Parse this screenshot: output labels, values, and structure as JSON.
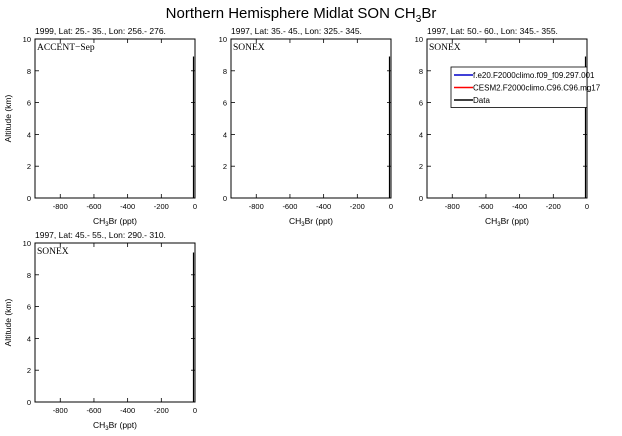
{
  "figure": {
    "title_main": "Northern Hemisphere Midlat SON CH",
    "title_sub": "3",
    "title_end": "Br"
  },
  "chart_data": [
    {
      "type": "line",
      "subtitle": "1999, Lat: 25.- 35., Lon: 256.- 276.",
      "annotation": "ACCENT−Sep",
      "xlabel": "CH3Br (ppt)",
      "ylabel": "Altitude (km)",
      "xlim": [
        -950,
        0
      ],
      "ylim": [
        0,
        10
      ],
      "xticks": [
        -800,
        -600,
        -400,
        -200,
        0
      ],
      "yticks": [
        0,
        2,
        4,
        6,
        8,
        10
      ],
      "legend": null,
      "series": []
    },
    {
      "type": "line",
      "subtitle": "1997, Lat: 35.- 45., Lon: 325.- 345.",
      "annotation": "SONEX",
      "xlabel": "CH3Br (ppt)",
      "ylabel": "",
      "xlim": [
        -950,
        0
      ],
      "ylim": [
        0,
        10
      ],
      "xticks": [
        -800,
        -600,
        -400,
        -200,
        0
      ],
      "yticks": [
        0,
        2,
        4,
        6,
        8,
        10
      ],
      "legend": null,
      "series": []
    },
    {
      "type": "line",
      "subtitle": "1997, Lat: 50.- 60., Lon: 345.- 355.",
      "annotation": "SONEX",
      "xlabel": "CH3Br (ppt)",
      "ylabel": "",
      "xlim": [
        -950,
        0
      ],
      "ylim": [
        0,
        10
      ],
      "xticks": [
        -800,
        -600,
        -400,
        -200,
        0
      ],
      "yticks": [
        0,
        2,
        4,
        6,
        8,
        10
      ],
      "legend": {
        "placement": "top-right",
        "entries": [
          {
            "label": "f.e20.F2000climo.f09_f09.297.001",
            "color": "#0000cc"
          },
          {
            "label": "CESM2.F2000climo.C96.C96.mg17",
            "color": "#ff0000"
          },
          {
            "label": "Data",
            "color": "#000000"
          }
        ]
      },
      "series": []
    },
    {
      "type": "line",
      "subtitle": "1997, Lat: 45.- 55., Lon: 290.- 310.",
      "annotation": "SONEX",
      "xlabel": "CH3Br (ppt)",
      "ylabel": "Altitude (km)",
      "xlim": [
        -950,
        0
      ],
      "ylim": [
        0,
        10
      ],
      "xticks": [
        -800,
        -600,
        -400,
        -200,
        0
      ],
      "yticks": [
        0,
        2,
        4,
        6,
        8,
        10
      ],
      "legend": null,
      "series": []
    }
  ]
}
